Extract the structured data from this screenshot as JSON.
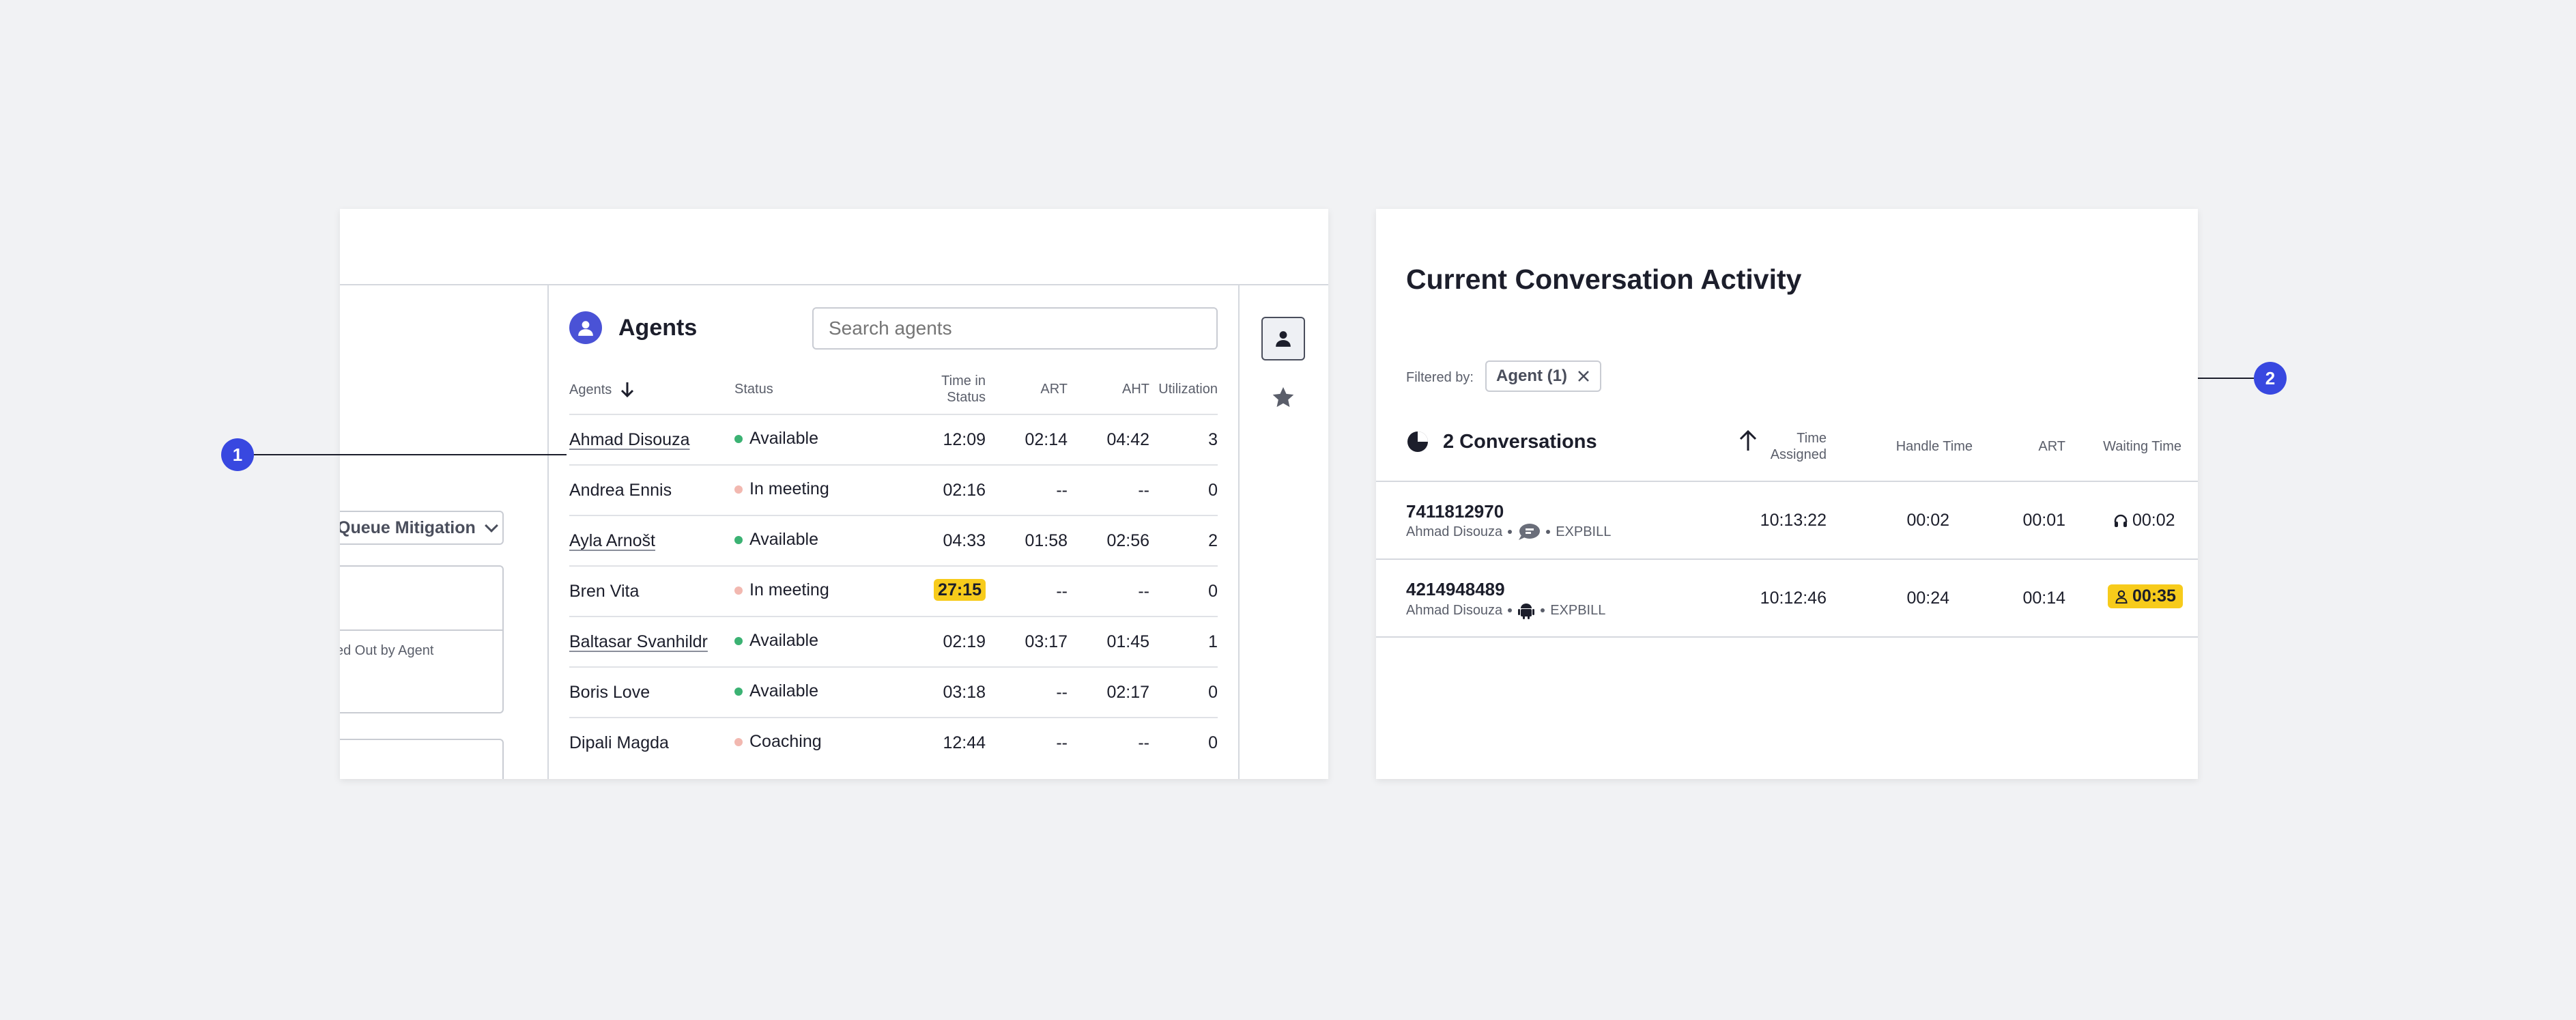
{
  "left_panel": {
    "dropdown_label": "Queue Mitigation",
    "box_text": "ed Out by Agent"
  },
  "agents": {
    "title": "Agents",
    "search_placeholder": "Search agents",
    "columns": {
      "agents": "Agents",
      "status": "Status",
      "time_in_status_1": "Time in",
      "time_in_status_2": "Status",
      "art": "ART",
      "aht": "AHT",
      "utilization": "Utilization"
    },
    "rows": [
      {
        "name": "Ahmad Disouza",
        "status": "Available",
        "time": "12:09",
        "art": "02:14",
        "aht": "04:42",
        "util": "3"
      },
      {
        "name": "Andrea Ennis",
        "status": "In meeting",
        "time": "02:16",
        "art": "--",
        "aht": "--",
        "util": "0"
      },
      {
        "name": "Ayla Arnošt",
        "status": "Available",
        "time": "04:33",
        "art": "01:58",
        "aht": "02:56",
        "util": "2"
      },
      {
        "name": "Bren Vita",
        "status": "In meeting",
        "time": "27:15",
        "art": "--",
        "aht": "--",
        "util": "0"
      },
      {
        "name": "Baltasar Svanhildr",
        "status": "Available",
        "time": "02:19",
        "art": "03:17",
        "aht": "01:45",
        "util": "1"
      },
      {
        "name": "Boris Love",
        "status": "Available",
        "time": "03:18",
        "art": "--",
        "aht": "02:17",
        "util": "0"
      },
      {
        "name": "Dipali Magda",
        "status": "Coaching",
        "time": "12:44",
        "art": "--",
        "aht": "--",
        "util": "0"
      }
    ]
  },
  "callouts": {
    "one": "1",
    "two": "2"
  },
  "conversation": {
    "title": "Current Conversation Activity",
    "filtered_by_label": "Filtered by:",
    "filter_chip": "Agent (1)",
    "count_label": "2 Conversations",
    "columns": {
      "time_assigned_1": "Time",
      "time_assigned_2": "Assigned",
      "handle_time": "Handle Time",
      "art": "ART",
      "waiting_time": "Waiting Time"
    },
    "rows": [
      {
        "id": "7411812970",
        "agent": "Ahmad Disouza",
        "queue": "EXPBILL",
        "time_assigned": "10:13:22",
        "handle": "00:02",
        "art": "00:01",
        "waiting": "00:02"
      },
      {
        "id": "4214948489",
        "agent": "Ahmad Disouza",
        "queue": "EXPBILL",
        "time_assigned": "10:12:46",
        "handle": "00:24",
        "art": "00:14",
        "waiting": "00:35"
      }
    ]
  },
  "colors": {
    "accent": "#4a52d6",
    "callout": "#3848e0",
    "available": "#3bb273",
    "in_meeting": "#f2b8b0",
    "highlight": "#f7cb1b"
  }
}
